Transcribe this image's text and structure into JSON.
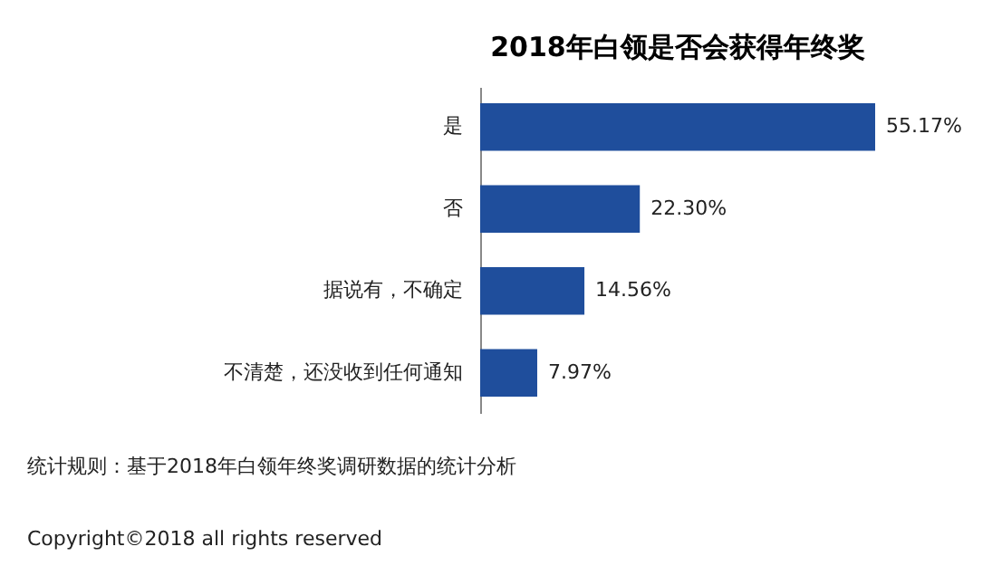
{
  "chart_data": {
    "type": "bar",
    "orientation": "horizontal",
    "title": "2018年白领是否会获得年终奖",
    "categories": [
      "是",
      "否",
      "据说有，不确定",
      "不清楚，还没收到任何通知"
    ],
    "values": [
      55.17,
      22.3,
      14.56,
      7.97
    ],
    "value_labels": [
      "55.17%",
      "22.30%",
      "14.56%",
      "7.97%"
    ],
    "color": "#1f4e9c",
    "tick_labels": "y",
    "grid": false,
    "annotations": [
      "统计规则：基于2018年白领年终奖调研数据的统计分析",
      "Copyright©2018 all rights reserved"
    ]
  }
}
